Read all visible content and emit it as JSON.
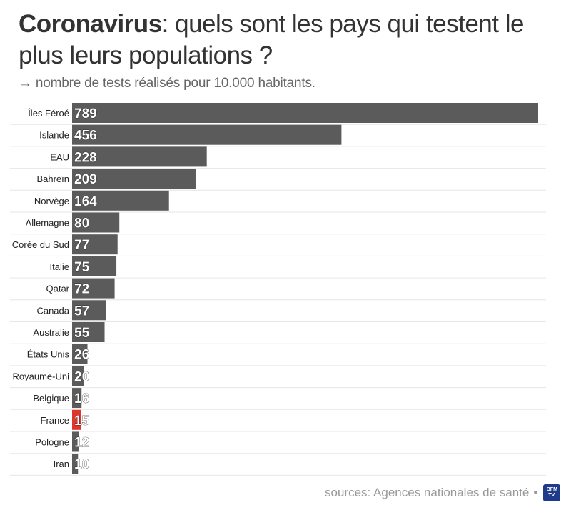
{
  "header": {
    "title_bold": "Coronavirus",
    "title_rest": ": quels sont les pays qui testent le plus leurs populations ?",
    "subtitle": "→ nombre de tests réalisés pour 10.000 habitants."
  },
  "footer": {
    "source": "sources: Agences nationales de santé",
    "separator": "•",
    "logo_line1": "BFM",
    "logo_line2": "TV."
  },
  "colors": {
    "bar": "#5b5b5b",
    "highlight": "#e0352b",
    "grid": "#e6e6e6",
    "label": "#222222",
    "value": "#ffffff"
  },
  "chart_data": {
    "type": "bar",
    "orientation": "horizontal",
    "categories": [
      "Îles Féroé",
      "Islande",
      "EAU",
      "Bahreïn",
      "Norvège",
      "Allemagne",
      "Corée du Sud",
      "Italie",
      "Qatar",
      "Canada",
      "Australie",
      "États Unis",
      "Royaume-Uni",
      "Belgique",
      "France",
      "Pologne",
      "Iran"
    ],
    "values": [
      789,
      456,
      228,
      209,
      164,
      80,
      77,
      75,
      72,
      57,
      55,
      26,
      20,
      16,
      15,
      12,
      10
    ],
    "highlight": "France",
    "xlim": [
      0,
      789
    ],
    "grid": true
  }
}
